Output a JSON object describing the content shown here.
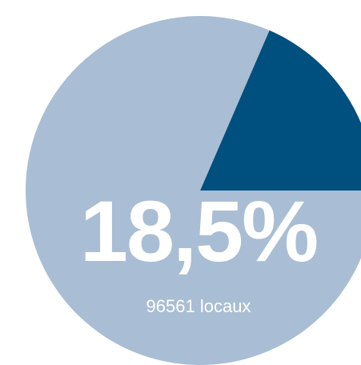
{
  "chart_data": {
    "type": "pie",
    "values": [
      18.5,
      81.5
    ],
    "value_labels": [
      "18,5%",
      null
    ],
    "colors": [
      "#00507f",
      "#a9bed4"
    ],
    "annotation": "96561 locaux"
  }
}
